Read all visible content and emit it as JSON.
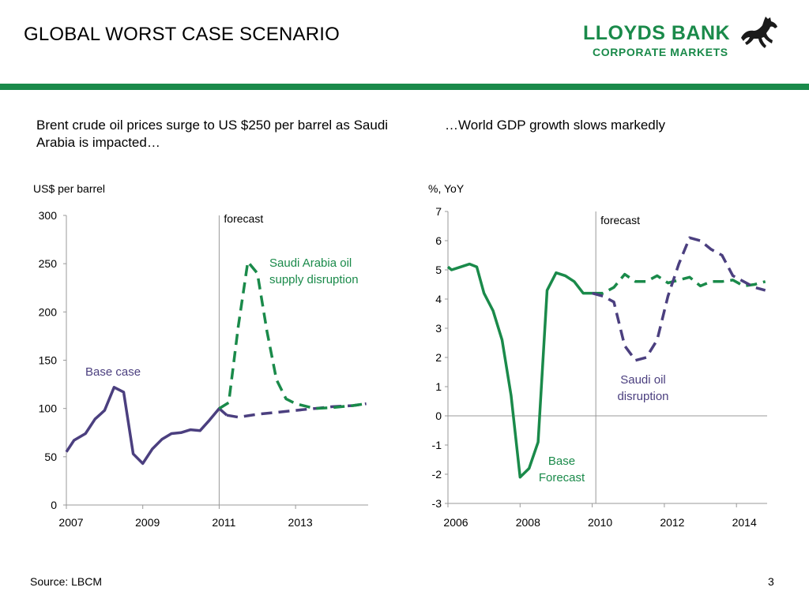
{
  "header": {
    "title": "GLOBAL WORST CASE SCENARIO",
    "logo_line1": "LLOYDS BANK",
    "logo_line2": "CORPORATE MARKETS",
    "logo_icon": "black-horse-icon",
    "brand_color": "#1a8a4a"
  },
  "subtitles": {
    "left": "Brent crude oil prices surge to US $250 per barrel as Saudi Arabia is impacted…",
    "right": "…World GDP growth slows markedly"
  },
  "footer": {
    "source": "Source: LBCM",
    "page": "3"
  },
  "chart_data": [
    {
      "type": "line",
      "ylabel": "US$ per barrel",
      "ylim": [
        0,
        300
      ],
      "yticks": [
        "0",
        "50",
        "100",
        "150",
        "200",
        "250",
        "300"
      ],
      "xlim": [
        2007,
        2014.9
      ],
      "xticks": [
        "2007",
        "2009",
        "2011",
        "2013"
      ],
      "forecast_label": "forecast",
      "forecast_x": 2011,
      "series": [
        {
          "name": "Base case",
          "style": "solid",
          "color": "#4b3f7f",
          "x": [
            2007.0,
            2007.2,
            2007.5,
            2007.75,
            2008.0,
            2008.25,
            2008.5,
            2008.75,
            2009.0,
            2009.25,
            2009.5,
            2009.75,
            2010.0,
            2010.25,
            2010.5,
            2010.75,
            2011.0,
            2011.2
          ],
          "values": [
            55,
            67,
            74,
            89,
            98,
            122,
            117,
            53,
            43,
            58,
            68,
            74,
            75,
            78,
            77,
            88,
            100,
            93
          ]
        },
        {
          "name": "",
          "style": "dashed",
          "color": "#4b3f7f",
          "x": [
            2011.2,
            2011.5,
            2012.0,
            2012.5,
            2013.0,
            2013.5,
            2014.0,
            2014.5,
            2014.85
          ],
          "values": [
            93,
            91,
            94,
            96,
            98,
            100,
            102,
            103,
            105
          ]
        },
        {
          "name": "Saudi Arabia oil supply disruption",
          "style": "dashed",
          "color": "#1a8a4a",
          "x": [
            2011.0,
            2011.25,
            2011.5,
            2011.75,
            2012.0,
            2012.25,
            2012.5,
            2012.75,
            2013.0,
            2013.5,
            2014.0,
            2014.5,
            2014.85
          ],
          "values": [
            100,
            106,
            185,
            252,
            240,
            180,
            130,
            110,
            105,
            100,
            101,
            103,
            105
          ]
        }
      ],
      "annotations": [
        {
          "text": "Base case",
          "color": "#4b3f7f"
        },
        {
          "text": "Saudi Arabia oil",
          "color": "#1a8a4a"
        },
        {
          "text": "supply disruption",
          "color": "#1a8a4a"
        }
      ]
    },
    {
      "type": "line",
      "ylabel": "%, YoY",
      "ylim": [
        -3,
        7
      ],
      "yticks": [
        "-3",
        "-2",
        "-1",
        "0",
        "1",
        "2",
        "3",
        "4",
        "5",
        "6",
        "7"
      ],
      "xlim": [
        2006,
        2014.85
      ],
      "xticks": [
        "2006",
        "2008",
        "2010",
        "2012",
        "2014"
      ],
      "forecast_label": "forecast",
      "forecast_x": 2010.1,
      "series": [
        {
          "name": "Base Forecast",
          "style": "solid",
          "color": "#1a8a4a",
          "x": [
            2006.0,
            2006.1,
            2006.35,
            2006.6,
            2006.8,
            2007.0,
            2007.25,
            2007.5,
            2007.75,
            2008.0,
            2008.25,
            2008.5,
            2008.75,
            2009.0,
            2009.25,
            2009.5,
            2009.75,
            2010.0
          ],
          "values": [
            5.1,
            5.0,
            5.1,
            5.2,
            5.1,
            4.2,
            3.6,
            2.6,
            0.7,
            -2.1,
            -1.8,
            -0.9,
            4.3,
            4.9,
            4.8,
            4.6,
            4.2,
            4.2
          ]
        },
        {
          "name": "",
          "style": "dashed",
          "color": "#1a8a4a",
          "x": [
            2010.0,
            2010.3,
            2010.6,
            2010.9,
            2011.2,
            2011.5,
            2011.8,
            2012.1,
            2012.4,
            2012.7,
            2013.0,
            2013.3,
            2013.6,
            2013.9,
            2014.2,
            2014.5,
            2014.8
          ],
          "values": [
            4.2,
            4.2,
            4.4,
            4.85,
            4.6,
            4.6,
            4.8,
            4.55,
            4.65,
            4.75,
            4.45,
            4.6,
            4.6,
            4.65,
            4.45,
            4.5,
            4.6
          ]
        },
        {
          "name": "Saudi oil disruption",
          "style": "dashed",
          "color": "#4b3f7f",
          "x": [
            2010.0,
            2010.3,
            2010.6,
            2010.9,
            2011.2,
            2011.5,
            2011.8,
            2012.1,
            2012.4,
            2012.7,
            2013.0,
            2013.3,
            2013.6,
            2013.9,
            2014.2,
            2014.5,
            2014.8
          ],
          "values": [
            4.2,
            4.1,
            3.9,
            2.4,
            1.9,
            2.0,
            2.6,
            4.1,
            5.2,
            6.1,
            6.0,
            5.7,
            5.5,
            4.8,
            4.6,
            4.4,
            4.3
          ]
        }
      ],
      "annotations": [
        {
          "text": "Base",
          "color": "#1a8a4a"
        },
        {
          "text": "Forecast",
          "color": "#1a8a4a"
        },
        {
          "text": "Saudi oil",
          "color": "#4b3f7f"
        },
        {
          "text": "disruption",
          "color": "#4b3f7f"
        }
      ]
    }
  ]
}
